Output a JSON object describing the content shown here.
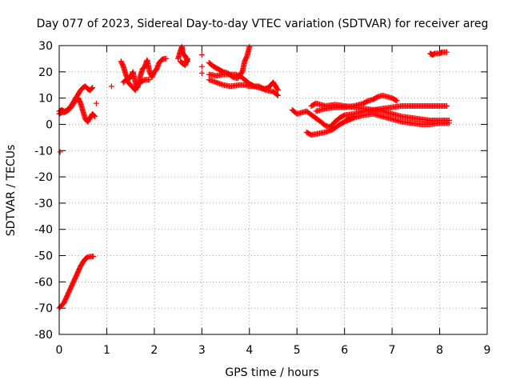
{
  "chart_data": {
    "type": "scatter",
    "title": "Day 077 of 2023, Sidereal Day-to-day VTEC variation (SDTVAR) for receiver areg",
    "xlabel": "GPS time / hours",
    "ylabel": "SDTVAR / TECUs",
    "xlim": [
      0,
      9
    ],
    "ylim": [
      -80,
      30
    ],
    "x_ticks": [
      0,
      1,
      2,
      3,
      4,
      5,
      6,
      7,
      8,
      9
    ],
    "y_ticks": [
      -80,
      -70,
      -60,
      -50,
      -40,
      -30,
      -20,
      -10,
      0,
      10,
      20,
      30
    ],
    "grid": true,
    "marker": "+",
    "series_color": "#ff0000",
    "series": [
      {
        "name": "descent-0",
        "points": [
          [
            0.0,
            -70
          ],
          [
            0.05,
            -69
          ],
          [
            0.1,
            -68
          ],
          [
            0.15,
            -66
          ],
          [
            0.2,
            -64
          ],
          [
            0.25,
            -62
          ],
          [
            0.3,
            -60
          ],
          [
            0.35,
            -58
          ],
          [
            0.4,
            -56
          ],
          [
            0.45,
            -54
          ],
          [
            0.5,
            -52.5
          ],
          [
            0.55,
            -51.2
          ],
          [
            0.6,
            -50.6
          ],
          [
            0.65,
            -50.4
          ],
          [
            0.72,
            -50.3
          ]
        ]
      },
      {
        "name": "isolated-0",
        "points": [
          [
            0.02,
            -10.5
          ],
          [
            0.78,
            8
          ],
          [
            1.1,
            14.5
          ],
          [
            3.0,
            26.5
          ],
          [
            3.0,
            22
          ],
          [
            3.0,
            19.5
          ]
        ]
      },
      {
        "name": "hour0-upper",
        "points": [
          [
            0.0,
            5
          ],
          [
            0.05,
            5.5
          ],
          [
            0.1,
            5
          ],
          [
            0.15,
            5.2
          ],
          [
            0.2,
            6
          ],
          [
            0.25,
            7
          ],
          [
            0.3,
            8.5
          ],
          [
            0.35,
            10
          ],
          [
            0.4,
            11.5
          ],
          [
            0.45,
            13
          ],
          [
            0.5,
            14
          ],
          [
            0.55,
            14.5
          ],
          [
            0.6,
            13.5
          ],
          [
            0.65,
            13
          ],
          [
            0.7,
            14
          ]
        ]
      },
      {
        "name": "hour0-lower",
        "points": [
          [
            0.0,
            4
          ],
          [
            0.05,
            4.5
          ],
          [
            0.1,
            4.5
          ],
          [
            0.15,
            5
          ],
          [
            0.2,
            5.5
          ],
          [
            0.25,
            6.5
          ],
          [
            0.3,
            8
          ],
          [
            0.35,
            9
          ],
          [
            0.4,
            10
          ],
          [
            0.45,
            8
          ],
          [
            0.5,
            5
          ],
          [
            0.55,
            2
          ],
          [
            0.6,
            1
          ],
          [
            0.65,
            2.5
          ],
          [
            0.7,
            4
          ],
          [
            0.75,
            3
          ]
        ]
      },
      {
        "name": "hour1-5",
        "points": [
          [
            1.3,
            24
          ],
          [
            1.35,
            22
          ],
          [
            1.4,
            19
          ],
          [
            1.45,
            17
          ],
          [
            1.5,
            18
          ],
          [
            1.55,
            20
          ],
          [
            1.6,
            16
          ],
          [
            1.65,
            14
          ],
          [
            1.7,
            18
          ],
          [
            1.75,
            21
          ],
          [
            1.8,
            22
          ],
          [
            1.85,
            24.5
          ],
          [
            1.9,
            20
          ],
          [
            1.95,
            18
          ],
          [
            2.0,
            20
          ]
        ]
      },
      {
        "name": "hour1-5-b",
        "points": [
          [
            1.35,
            16
          ],
          [
            1.4,
            17
          ],
          [
            1.5,
            15
          ],
          [
            1.6,
            13
          ],
          [
            1.65,
            15
          ],
          [
            1.7,
            16
          ],
          [
            1.8,
            17
          ],
          [
            1.9,
            17
          ]
        ]
      },
      {
        "name": "hour2",
        "points": [
          [
            2.0,
            20
          ],
          [
            2.05,
            21
          ],
          [
            2.1,
            23.5
          ],
          [
            2.15,
            24.5
          ],
          [
            2.2,
            25
          ],
          [
            2.25,
            25
          ]
        ]
      },
      {
        "name": "hour2-5",
        "points": [
          [
            2.5,
            25
          ],
          [
            2.55,
            28
          ],
          [
            2.58,
            29.5
          ],
          [
            2.6,
            27
          ],
          [
            2.65,
            26
          ],
          [
            2.7,
            24
          ],
          [
            2.6,
            23
          ],
          [
            2.55,
            24
          ],
          [
            2.65,
            22.5
          ],
          [
            2.7,
            25
          ]
        ]
      },
      {
        "name": "hour3-upper",
        "points": [
          [
            3.15,
            23.5
          ],
          [
            3.25,
            22
          ],
          [
            3.35,
            21
          ],
          [
            3.45,
            20
          ],
          [
            3.55,
            19.5
          ],
          [
            3.65,
            18
          ],
          [
            3.75,
            17.5
          ],
          [
            3.85,
            20
          ],
          [
            3.9,
            24
          ],
          [
            3.95,
            26
          ],
          [
            4.0,
            29.5
          ]
        ]
      },
      {
        "name": "hour3-middle",
        "points": [
          [
            3.15,
            19
          ],
          [
            3.3,
            18.5
          ],
          [
            3.45,
            19
          ],
          [
            3.6,
            19
          ],
          [
            3.7,
            19
          ],
          [
            3.8,
            18.5
          ],
          [
            3.9,
            17
          ],
          [
            4.0,
            15.5
          ],
          [
            4.1,
            14.5
          ],
          [
            4.2,
            14
          ],
          [
            4.3,
            13.5
          ],
          [
            4.4,
            14
          ],
          [
            4.5,
            16
          ],
          [
            4.6,
            13
          ]
        ]
      },
      {
        "name": "hour3-lower",
        "points": [
          [
            3.15,
            17
          ],
          [
            3.3,
            16
          ],
          [
            3.45,
            15
          ],
          [
            3.6,
            14.5
          ],
          [
            3.8,
            15
          ],
          [
            3.9,
            15
          ],
          [
            4.0,
            14.5
          ],
          [
            4.2,
            14.5
          ],
          [
            4.35,
            13
          ],
          [
            4.5,
            12.5
          ],
          [
            4.6,
            11
          ]
        ]
      },
      {
        "name": "hour5-lower",
        "points": [
          [
            4.9,
            5.5
          ],
          [
            5.0,
            4
          ],
          [
            5.1,
            4.5
          ],
          [
            5.2,
            5
          ],
          [
            5.35,
            3
          ],
          [
            5.5,
            1
          ],
          [
            5.6,
            -0.5
          ],
          [
            5.7,
            -1
          ],
          [
            5.8,
            1
          ],
          [
            5.9,
            2.5
          ],
          [
            6.0,
            3.5
          ],
          [
            6.2,
            4
          ],
          [
            6.4,
            5
          ],
          [
            6.6,
            5.5
          ],
          [
            6.8,
            6
          ],
          [
            7.0,
            6.5
          ],
          [
            7.2,
            7
          ],
          [
            7.4,
            7
          ],
          [
            7.6,
            7
          ],
          [
            7.8,
            7
          ],
          [
            8.0,
            7
          ],
          [
            8.15,
            7
          ]
        ]
      },
      {
        "name": "hour5-dip",
        "points": [
          [
            5.2,
            -3
          ],
          [
            5.3,
            -4
          ],
          [
            5.45,
            -3.5
          ],
          [
            5.6,
            -3
          ],
          [
            5.75,
            -2
          ],
          [
            5.9,
            0
          ],
          [
            6.0,
            1
          ],
          [
            6.1,
            2.5
          ],
          [
            6.2,
            3
          ]
        ]
      },
      {
        "name": "hour5-upper",
        "points": [
          [
            5.3,
            7
          ],
          [
            5.4,
            8
          ],
          [
            5.5,
            7.5
          ],
          [
            5.6,
            7
          ],
          [
            5.8,
            7.5
          ],
          [
            6.0,
            7
          ],
          [
            6.2,
            6.5
          ],
          [
            6.4,
            6
          ],
          [
            6.6,
            5.5
          ],
          [
            6.8,
            5
          ],
          [
            7.0,
            4
          ],
          [
            7.2,
            3
          ],
          [
            7.4,
            2.5
          ],
          [
            7.6,
            2
          ],
          [
            7.8,
            1.5
          ],
          [
            8.0,
            1.5
          ],
          [
            8.2,
            1.5
          ]
        ]
      },
      {
        "name": "hour5-arc",
        "points": [
          [
            5.4,
            5
          ],
          [
            5.6,
            6
          ],
          [
            5.8,
            6.5
          ],
          [
            6.0,
            6.5
          ],
          [
            6.2,
            7
          ],
          [
            6.4,
            8
          ],
          [
            6.5,
            9
          ],
          [
            6.6,
            9.5
          ],
          [
            6.7,
            10.5
          ],
          [
            6.8,
            11
          ],
          [
            6.9,
            10.5
          ],
          [
            7.0,
            10
          ],
          [
            7.1,
            9
          ]
        ]
      },
      {
        "name": "hour6-low",
        "points": [
          [
            6.0,
            1
          ],
          [
            6.2,
            2.5
          ],
          [
            6.4,
            3.5
          ],
          [
            6.6,
            4
          ],
          [
            6.8,
            3
          ],
          [
            7.0,
            2
          ],
          [
            7.2,
            1
          ],
          [
            7.4,
            0.5
          ],
          [
            7.6,
            0
          ],
          [
            7.8,
            0
          ],
          [
            8.0,
            0.5
          ],
          [
            8.2,
            0.5
          ]
        ]
      },
      {
        "name": "hour8-top",
        "points": [
          [
            7.8,
            27
          ],
          [
            7.85,
            26.5
          ],
          [
            7.9,
            27
          ],
          [
            7.95,
            27
          ],
          [
            8.0,
            27
          ],
          [
            8.05,
            27.5
          ],
          [
            8.1,
            27.5
          ],
          [
            8.15,
            27.5
          ]
        ]
      }
    ]
  }
}
